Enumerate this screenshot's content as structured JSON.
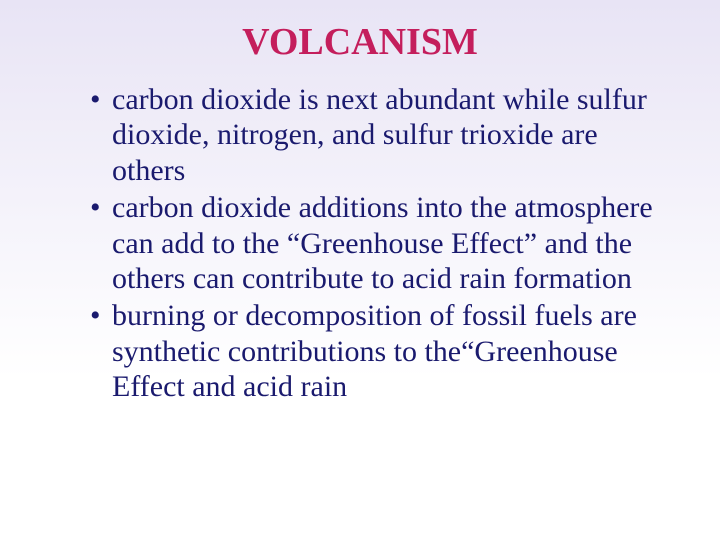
{
  "slide": {
    "title": "VOLCANISM",
    "title_color": "#c41e5c",
    "title_fontsize": 38,
    "body_color": "#1a1a6e",
    "body_fontsize": 30,
    "line_height": 1.18,
    "bullets": [
      "carbon dioxide is next abundant while sulfur dioxide, nitrogen, and sulfur trioxide are others",
      "carbon dioxide additions into the atmosphere can add to the “Greenhouse Effect” and the others can contribute to acid rain formation",
      "burning or decomposition of fossil fuels are synthetic contributions to the“Greenhouse Effect and acid rain"
    ]
  }
}
